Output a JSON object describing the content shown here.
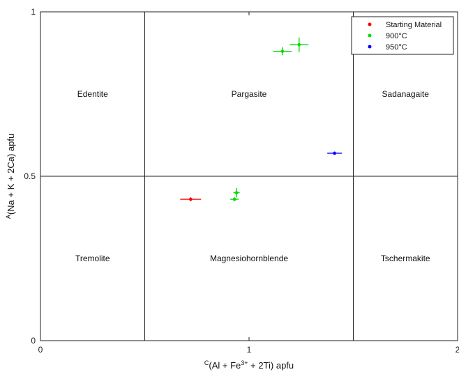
{
  "chart_data": {
    "type": "scatter",
    "xlim": [
      0,
      2
    ],
    "ylim": [
      0,
      1
    ],
    "x_ticks": [
      {
        "value": 0,
        "label": "0"
      },
      {
        "value": 1,
        "label": "1"
      },
      {
        "value": 2,
        "label": "2"
      }
    ],
    "y_ticks": [
      {
        "value": 0,
        "label": "0"
      },
      {
        "value": 0.5,
        "label": "0.5"
      },
      {
        "value": 1,
        "label": "1"
      }
    ],
    "xlabel": {
      "sup": "C",
      "main": "(Al + Fe",
      "sup2": "3+",
      "tail": " + 2Ti) apfu"
    },
    "ylabel": {
      "sup": "A",
      "main": "(Na + K + 2Ca) apfu"
    },
    "divider_x": [
      0.5,
      1.5
    ],
    "divider_y": [
      0.5
    ],
    "regions": [
      {
        "label": "Edentite",
        "x": 0.25,
        "y": 0.75
      },
      {
        "label": "Pargasite",
        "x": 1.0,
        "y": 0.75
      },
      {
        "label": "Sadanagaite",
        "x": 1.75,
        "y": 0.75
      },
      {
        "label": "Tremolite",
        "x": 0.25,
        "y": 0.25
      },
      {
        "label": "Magnesiohornblende",
        "x": 1.0,
        "y": 0.25
      },
      {
        "label": "Tschermakite",
        "x": 1.75,
        "y": 0.25
      }
    ],
    "legend_position": "top-right",
    "series": [
      {
        "name": "Starting Material",
        "color": "#ff0000",
        "points": [
          {
            "x": 0.72,
            "y": 0.43,
            "xerr": 0.05,
            "yerr": 0.006
          }
        ]
      },
      {
        "name": "900°C",
        "color": "#00dd00",
        "points": [
          {
            "x": 1.16,
            "y": 0.88,
            "xerr": 0.045,
            "yerr": 0.012
          },
          {
            "x": 1.24,
            "y": 0.9,
            "xerr": 0.045,
            "yerr": 0.022
          },
          {
            "x": 0.93,
            "y": 0.43,
            "xerr": 0.02,
            "yerr": 0.006
          },
          {
            "x": 0.94,
            "y": 0.45,
            "xerr": 0.015,
            "yerr": 0.014
          }
        ]
      },
      {
        "name": "950°C",
        "color": "#0000ff",
        "points": [
          {
            "x": 1.41,
            "y": 0.57,
            "xerr": 0.035,
            "yerr": 0.005
          }
        ]
      }
    ]
  }
}
